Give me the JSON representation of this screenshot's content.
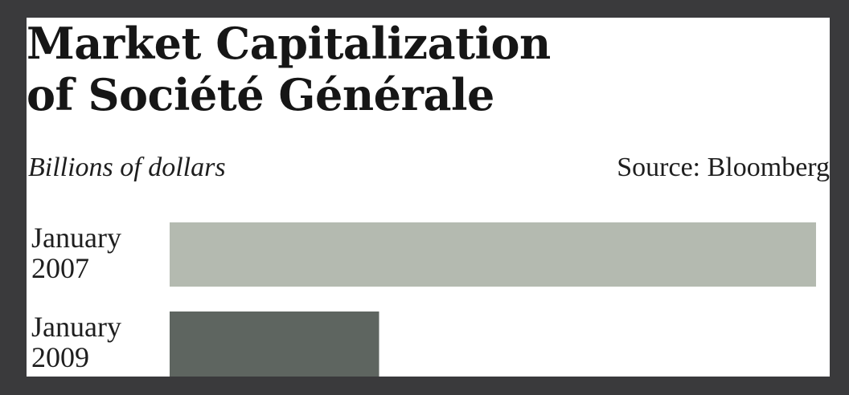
{
  "chart_data": {
    "type": "bar",
    "orientation": "horizontal",
    "title_lines": [
      "Market Capitalization",
      "of Société Générale"
    ],
    "subtitle": "Billions of dollars",
    "source": "Source: Bloomberg",
    "categories": [
      {
        "lines": [
          "January",
          "2007"
        ]
      },
      {
        "lines": [
          "January",
          "2009"
        ]
      }
    ],
    "values": [
      100,
      32.4
    ],
    "value_note": "relative scale; no axis printed",
    "xlim": [
      0,
      100
    ],
    "colors": [
      "#b4bab0",
      "#5e6560"
    ],
    "grid": false,
    "legend": "none"
  }
}
